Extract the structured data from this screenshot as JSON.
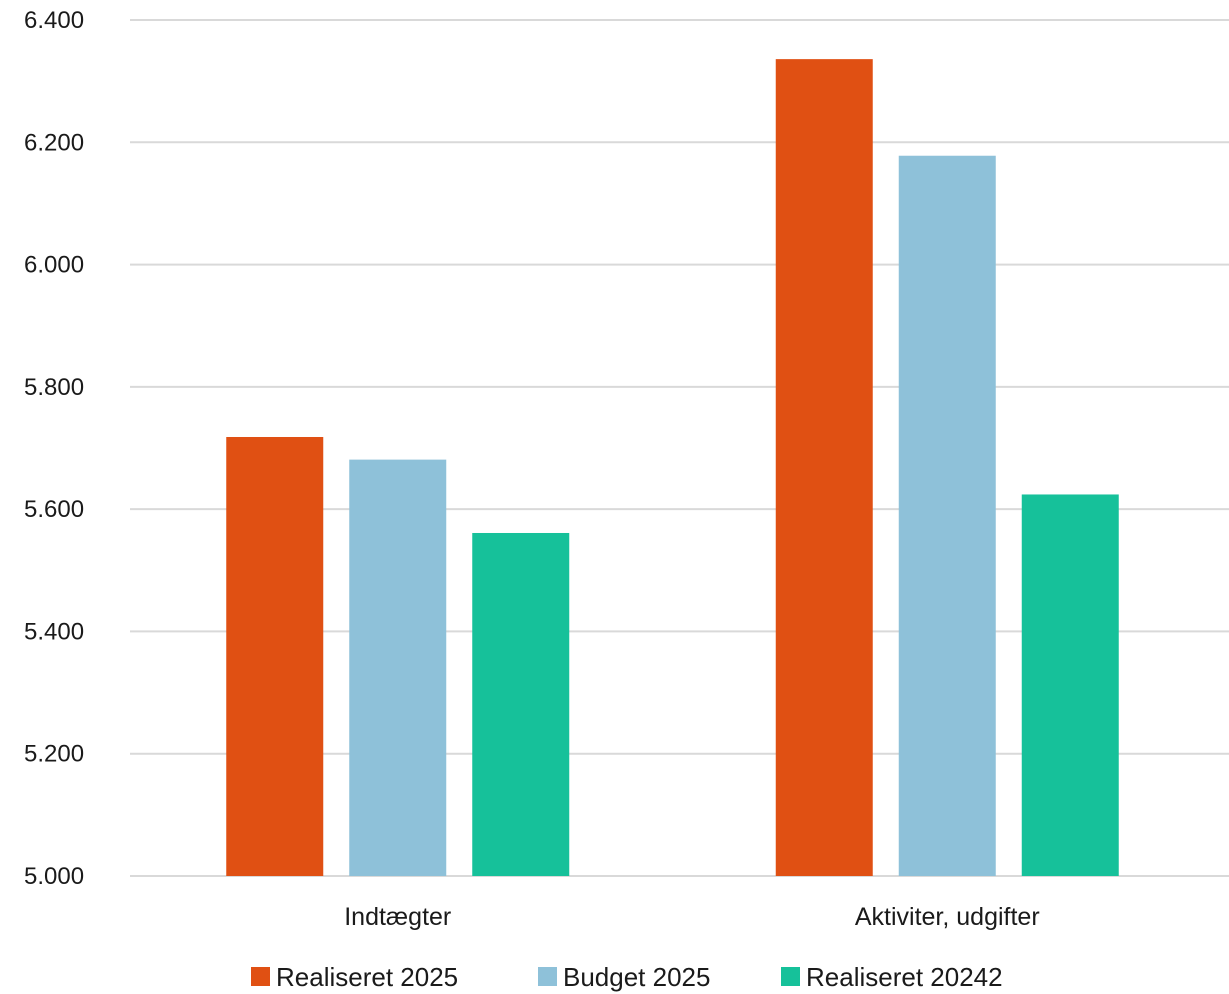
{
  "chart_data": {
    "type": "bar",
    "categories": [
      "Indtægter",
      "Aktiviter, udgifter"
    ],
    "series": [
      {
        "name": "Realiseret 2025",
        "color": "#E05013",
        "values": [
          5718,
          6336
        ]
      },
      {
        "name": "Budget 2025",
        "color": "#8EC1D9",
        "values": [
          5681,
          6178
        ]
      },
      {
        "name": "Realiseret 20242",
        "color": "#16C19A",
        "values": [
          5561,
          5624
        ]
      }
    ],
    "ylim": [
      5000,
      6400
    ],
    "yticks": [
      5000,
      5200,
      5400,
      5600,
      5800,
      6000,
      6200,
      6400
    ],
    "ytick_labels": [
      "5.000",
      "5.200",
      "5.400",
      "5.600",
      "5.800",
      "6.000",
      "6.200",
      "6.400"
    ],
    "grid": true,
    "legend_position": "bottom",
    "gridline_color": "#D9D9D9"
  }
}
